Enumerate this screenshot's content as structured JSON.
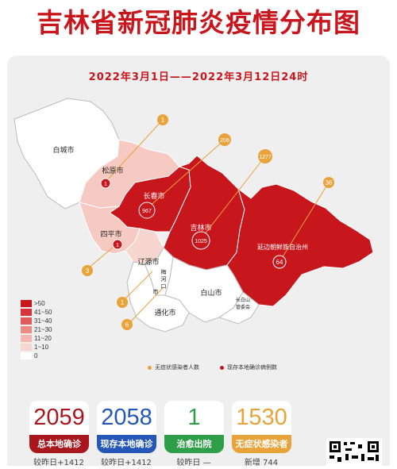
{
  "title": "吉林省新冠肺炎疫情分布图",
  "date_range": "2022年3月1日——2022年3月12日24时",
  "cities": [
    {
      "name": "白城市",
      "asymptomatic": null,
      "confirmed": null
    },
    {
      "name": "松原市",
      "asymptomatic": "1",
      "confirmed": "1"
    },
    {
      "name": "长春市",
      "asymptomatic": "206",
      "confirmed": "967"
    },
    {
      "name": "吉林市",
      "asymptomatic": "1277",
      "confirmed": "1025"
    },
    {
      "name": "延边朝鲜族自治州",
      "asymptomatic": "36",
      "confirmed": "64"
    },
    {
      "name": "四平市",
      "asymptomatic": "3",
      "confirmed": "1"
    },
    {
      "name": "辽源市",
      "asymptomatic": "1",
      "confirmed": null
    },
    {
      "name": "通化市",
      "asymptomatic": "6",
      "confirmed": null
    },
    {
      "name": "白山市",
      "asymptomatic": null,
      "confirmed": null
    },
    {
      "name": "梅河口市",
      "asymptomatic": null,
      "confirmed": null
    },
    {
      "name": "长白山管委会",
      "asymptomatic": null,
      "confirmed": null
    }
  ],
  "labels": {
    "meihe_1": "梅",
    "meihe_2": "河",
    "meihe_3": "口",
    "meihe_4": "市",
    "cbs_1": "长白山",
    "cbs_2": "管委会"
  },
  "legend": {
    "scale": [
      {
        "label": ">50",
        "color": "#c8161d"
      },
      {
        "label": "41~50",
        "color": "#d8343b"
      },
      {
        "label": "31~40",
        "color": "#e35a5c"
      },
      {
        "label": "21~30",
        "color": "#ec8b86"
      },
      {
        "label": "11~20",
        "color": "#f3b7af"
      },
      {
        "label": "1~10",
        "color": "#f8d6d0"
      },
      {
        "label": "0",
        "color": "#ffffff"
      }
    ],
    "asymptomatic_marker": "无症状感染者人数",
    "confirmed_marker": "现存本地确诊病例数",
    "asymptomatic_color": "#e8a33b",
    "confirmed_color": "#c8161d"
  },
  "stats": [
    {
      "value": "2059",
      "label": "总本地确诊",
      "sub": "较昨日+1412",
      "color": "#a8171d"
    },
    {
      "value": "2058",
      "label": "现存本地确诊",
      "sub": "较昨日+1412",
      "color": "#2457b8"
    },
    {
      "value": "1",
      "label": "治愈出院",
      "sub": "较昨日 —",
      "color": "#2e9e48"
    },
    {
      "value": "1530",
      "label": "无症状感染者",
      "sub": "新增 744",
      "color": "#e8a33b"
    }
  ]
}
